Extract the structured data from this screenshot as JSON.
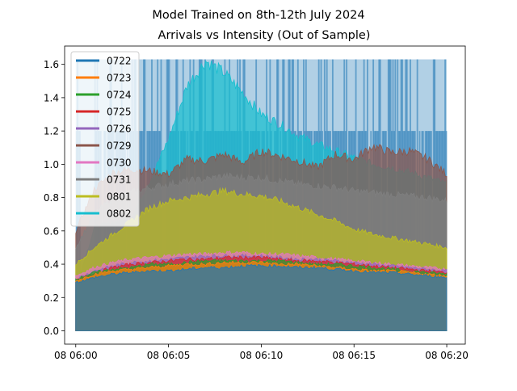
{
  "chart_data": {
    "type": "area",
    "title": "Model Trained on 8th-12th July 2024",
    "subtitle": "Arrivals vs Intensity (Out of Sample)",
    "xlabel": "",
    "ylabel": "",
    "x_range": [
      "08 06:00",
      "08 06:20"
    ],
    "xlim_minutes": [
      -0.6,
      21.0
    ],
    "ylim": [
      -0.08,
      1.71
    ],
    "x_ticks": [
      {
        "minute": 0,
        "label": "08 06:00"
      },
      {
        "minute": 5,
        "label": "08 06:05"
      },
      {
        "minute": 10,
        "label": "08 06:10"
      },
      {
        "minute": 15,
        "label": "08 06:15"
      },
      {
        "minute": 20,
        "label": "08 06:20"
      }
    ],
    "y_ticks": [
      {
        "value": 0.0,
        "label": "0.0"
      },
      {
        "value": 0.2,
        "label": "0.2"
      },
      {
        "value": 0.4,
        "label": "0.4"
      },
      {
        "value": 0.6,
        "label": "0.6"
      },
      {
        "value": 0.8,
        "label": "0.8"
      },
      {
        "value": 1.0,
        "label": "1.0"
      },
      {
        "value": 1.2,
        "label": "1.2"
      },
      {
        "value": 1.4,
        "label": "1.4"
      },
      {
        "value": 1.6,
        "label": "1.6"
      }
    ],
    "arrival_levels": [
      0.0,
      1.2,
      1.63
    ],
    "grid": false,
    "legend_position": "upper-left",
    "series": [
      {
        "name": "0722",
        "color": "#1f77b4",
        "x": [
          0,
          1,
          2,
          3,
          4,
          5,
          6,
          7,
          8,
          9,
          10,
          11,
          12,
          13,
          14,
          15,
          16,
          17,
          18,
          19,
          20
        ],
        "values": [
          0.29,
          0.32,
          0.34,
          0.35,
          0.36,
          0.36,
          0.37,
          0.38,
          0.38,
          0.39,
          0.39,
          0.39,
          0.38,
          0.38,
          0.37,
          0.36,
          0.35,
          0.35,
          0.34,
          0.33,
          0.32
        ]
      },
      {
        "name": "0723",
        "color": "#ff7f0e",
        "x": [
          0,
          1,
          2,
          3,
          4,
          5,
          6,
          7,
          8,
          9,
          10,
          11,
          12,
          13,
          14,
          15,
          16,
          17,
          18,
          19,
          20
        ],
        "values": [
          0.3,
          0.34,
          0.36,
          0.37,
          0.38,
          0.39,
          0.4,
          0.4,
          0.41,
          0.41,
          0.41,
          0.4,
          0.4,
          0.39,
          0.38,
          0.37,
          0.36,
          0.36,
          0.35,
          0.34,
          0.33
        ]
      },
      {
        "name": "0724",
        "color": "#2ca02c",
        "x": [
          0,
          1,
          2,
          3,
          4,
          5,
          6,
          7,
          8,
          9,
          10,
          11,
          12,
          13,
          14,
          15,
          16,
          17,
          18,
          19,
          20
        ],
        "values": [
          0.31,
          0.35,
          0.37,
          0.38,
          0.4,
          0.4,
          0.41,
          0.42,
          0.42,
          0.42,
          0.42,
          0.42,
          0.41,
          0.4,
          0.4,
          0.39,
          0.38,
          0.37,
          0.36,
          0.35,
          0.34
        ]
      },
      {
        "name": "0725",
        "color": "#d62728",
        "x": [
          0,
          1,
          2,
          3,
          4,
          5,
          6,
          7,
          8,
          9,
          10,
          11,
          12,
          13,
          14,
          15,
          16,
          17,
          18,
          19,
          20
        ],
        "values": [
          0.3,
          0.35,
          0.38,
          0.4,
          0.41,
          0.42,
          0.43,
          0.43,
          0.44,
          0.44,
          0.44,
          0.43,
          0.42,
          0.42,
          0.41,
          0.4,
          0.39,
          0.38,
          0.37,
          0.36,
          0.35
        ]
      },
      {
        "name": "0726",
        "color": "#9467bd",
        "x": [
          0,
          1,
          2,
          3,
          4,
          5,
          6,
          7,
          8,
          9,
          10,
          11,
          12,
          13,
          14,
          15,
          16,
          17,
          18,
          19,
          20
        ],
        "values": [
          0.31,
          0.36,
          0.39,
          0.41,
          0.42,
          0.43,
          0.44,
          0.45,
          0.45,
          0.45,
          0.45,
          0.44,
          0.43,
          0.43,
          0.42,
          0.41,
          0.4,
          0.39,
          0.38,
          0.37,
          0.36
        ]
      },
      {
        "name": "0729",
        "color": "#8c564b",
        "x": [
          0,
          1,
          2,
          3,
          4,
          5,
          6,
          7,
          8,
          9,
          10,
          11,
          12,
          13,
          14,
          15,
          16,
          17,
          18,
          19,
          20
        ],
        "values": [
          0.6,
          0.85,
          0.95,
          0.97,
          0.96,
          0.94,
          1.03,
          1.02,
          1.06,
          1.01,
          1.08,
          1.05,
          1.02,
          0.98,
          1.06,
          1.03,
          1.11,
          1.07,
          1.08,
          1.03,
          0.94
        ]
      },
      {
        "name": "0730",
        "color": "#e377c2",
        "x": [
          0,
          1,
          2,
          3,
          4,
          5,
          6,
          7,
          8,
          9,
          10,
          11,
          12,
          13,
          14,
          15,
          16,
          17,
          18,
          19,
          20
        ],
        "values": [
          0.33,
          0.38,
          0.41,
          0.43,
          0.44,
          0.45,
          0.46,
          0.46,
          0.47,
          0.47,
          0.46,
          0.46,
          0.45,
          0.44,
          0.43,
          0.42,
          0.41,
          0.4,
          0.39,
          0.38,
          0.37
        ]
      },
      {
        "name": "0731",
        "color": "#7f7f7f",
        "x": [
          0,
          1,
          2,
          3,
          4,
          5,
          6,
          7,
          8,
          9,
          10,
          11,
          12,
          13,
          14,
          15,
          16,
          17,
          18,
          19,
          20
        ],
        "values": [
          0.5,
          0.7,
          0.8,
          0.83,
          0.86,
          0.88,
          0.9,
          0.91,
          0.93,
          0.92,
          0.92,
          0.9,
          0.88,
          0.87,
          0.86,
          0.84,
          0.83,
          0.82,
          0.81,
          0.8,
          0.78
        ]
      },
      {
        "name": "0801",
        "color": "#bcbd22",
        "x": [
          0,
          1,
          2,
          3,
          4,
          5,
          6,
          7,
          8,
          9,
          10,
          11,
          12,
          13,
          14,
          15,
          16,
          17,
          18,
          19,
          20
        ],
        "values": [
          0.4,
          0.5,
          0.58,
          0.66,
          0.74,
          0.78,
          0.8,
          0.82,
          0.84,
          0.82,
          0.81,
          0.78,
          0.74,
          0.7,
          0.66,
          0.61,
          0.58,
          0.56,
          0.54,
          0.52,
          0.5
        ]
      },
      {
        "name": "0802",
        "color": "#17becf",
        "x": [
          0,
          1,
          2,
          3,
          4,
          5,
          6,
          7,
          8,
          9,
          10,
          11,
          12,
          13,
          14,
          15,
          16,
          17,
          18,
          19,
          20
        ],
        "values": [
          0.25,
          0.62,
          0.65,
          0.68,
          0.9,
          1.15,
          1.47,
          1.62,
          1.55,
          1.43,
          1.3,
          1.24,
          1.17,
          1.12,
          1.08,
          1.04,
          1.0,
          0.98,
          0.95,
          0.92,
          0.88
        ]
      }
    ]
  }
}
